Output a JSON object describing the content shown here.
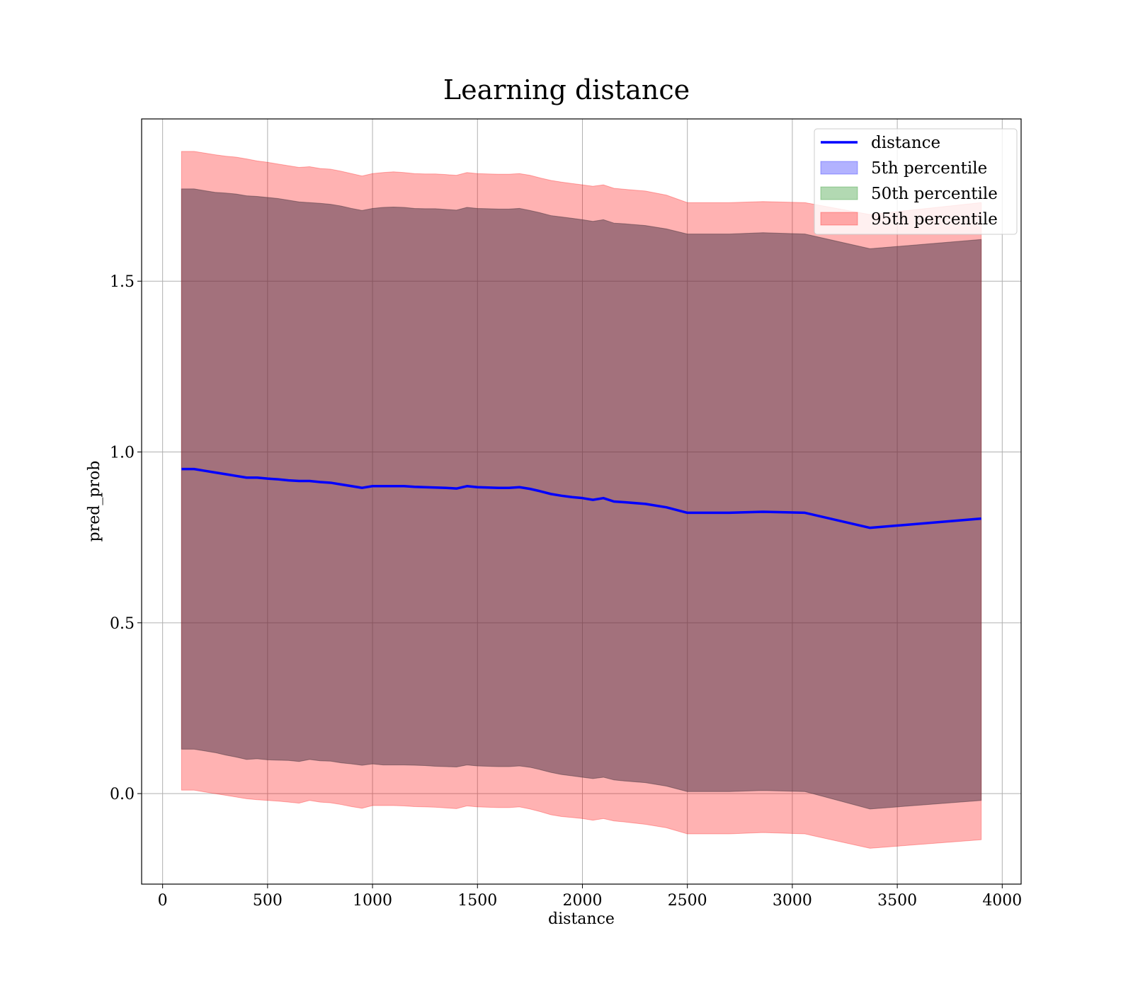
{
  "chart_data": {
    "type": "area",
    "title": "Learning distance",
    "xlabel": "distance",
    "ylabel": "pred_prob",
    "xlim": [
      -100,
      4090
    ],
    "ylim": [
      -0.265,
      1.975
    ],
    "xticks": [
      0,
      500,
      1000,
      1500,
      2000,
      2500,
      3000,
      3500,
      4000
    ],
    "xtick_labels": [
      "0",
      "500",
      "1000",
      "1500",
      "2000",
      "2500",
      "3000",
      "3500",
      "4000"
    ],
    "yticks": [
      0.0,
      0.5,
      1.0,
      1.5
    ],
    "ytick_labels": [
      "0.0",
      "0.5",
      "1.0",
      "1.5"
    ],
    "grid": true,
    "legend_position": "top-right",
    "legend": [
      {
        "label": "distance",
        "kind": "line",
        "color": "#0000ff"
      },
      {
        "label": "5th percentile",
        "kind": "patch",
        "color": "#0000ff"
      },
      {
        "label": "50th percentile",
        "kind": "patch",
        "color": "#008000"
      },
      {
        "label": "95th percentile",
        "kind": "patch",
        "color": "#ff0000"
      }
    ],
    "x": [
      90,
      150,
      200,
      250,
      300,
      350,
      400,
      450,
      500,
      550,
      600,
      650,
      700,
      750,
      800,
      850,
      900,
      950,
      1000,
      1050,
      1100,
      1150,
      1200,
      1250,
      1300,
      1350,
      1400,
      1450,
      1500,
      1550,
      1600,
      1650,
      1700,
      1750,
      1800,
      1850,
      1900,
      1950,
      2000,
      2050,
      2100,
      2150,
      2200,
      2300,
      2400,
      2500,
      2600,
      2700,
      2860,
      3060,
      3370,
      3900
    ],
    "series": [
      {
        "name": "distance",
        "values": [
          0.95,
          0.95,
          0.945,
          0.94,
          0.935,
          0.93,
          0.925,
          0.925,
          0.922,
          0.92,
          0.917,
          0.915,
          0.915,
          0.912,
          0.91,
          0.905,
          0.9,
          0.895,
          0.9,
          0.9,
          0.9,
          0.9,
          0.898,
          0.897,
          0.896,
          0.895,
          0.893,
          0.9,
          0.897,
          0.896,
          0.895,
          0.895,
          0.897,
          0.892,
          0.885,
          0.877,
          0.872,
          0.868,
          0.865,
          0.86,
          0.865,
          0.855,
          0.853,
          0.848,
          0.838,
          0.822,
          0.822,
          0.822,
          0.825,
          0.822,
          0.778,
          0.805
        ]
      }
    ],
    "bands": [
      {
        "name": "5th percentile",
        "color": "#0000ff",
        "upper": [
          1.77,
          1.77,
          1.765,
          1.76,
          1.758,
          1.755,
          1.75,
          1.748,
          1.745,
          1.742,
          1.737,
          1.732,
          1.73,
          1.728,
          1.725,
          1.72,
          1.713,
          1.707,
          1.713,
          1.716,
          1.717,
          1.716,
          1.713,
          1.712,
          1.712,
          1.71,
          1.708,
          1.716,
          1.713,
          1.712,
          1.711,
          1.711,
          1.713,
          1.707,
          1.7,
          1.692,
          1.688,
          1.684,
          1.68,
          1.675,
          1.68,
          1.67,
          1.668,
          1.663,
          1.653,
          1.638,
          1.638,
          1.638,
          1.642,
          1.638,
          1.595,
          1.622
        ],
        "lower": [
          0.13,
          0.13,
          0.125,
          0.12,
          0.113,
          0.107,
          0.1,
          0.102,
          0.099,
          0.098,
          0.097,
          0.094,
          0.1,
          0.096,
          0.095,
          0.09,
          0.087,
          0.083,
          0.087,
          0.084,
          0.084,
          0.084,
          0.083,
          0.082,
          0.08,
          0.079,
          0.078,
          0.084,
          0.081,
          0.08,
          0.079,
          0.079,
          0.081,
          0.077,
          0.07,
          0.062,
          0.056,
          0.052,
          0.048,
          0.044,
          0.048,
          0.04,
          0.037,
          0.032,
          0.022,
          0.006,
          0.006,
          0.006,
          0.009,
          0.006,
          -0.045,
          -0.02
        ]
      },
      {
        "name": "50th percentile",
        "color": "#008000",
        "upper": [
          1.77,
          1.77,
          1.765,
          1.76,
          1.758,
          1.755,
          1.75,
          1.748,
          1.745,
          1.742,
          1.737,
          1.732,
          1.73,
          1.728,
          1.725,
          1.72,
          1.713,
          1.707,
          1.713,
          1.716,
          1.717,
          1.716,
          1.713,
          1.712,
          1.712,
          1.71,
          1.708,
          1.716,
          1.713,
          1.712,
          1.711,
          1.711,
          1.713,
          1.707,
          1.7,
          1.692,
          1.688,
          1.684,
          1.68,
          1.675,
          1.68,
          1.67,
          1.668,
          1.663,
          1.653,
          1.638,
          1.638,
          1.638,
          1.642,
          1.638,
          1.595,
          1.622
        ],
        "lower": [
          0.13,
          0.13,
          0.125,
          0.12,
          0.113,
          0.107,
          0.1,
          0.102,
          0.099,
          0.098,
          0.097,
          0.094,
          0.1,
          0.096,
          0.095,
          0.09,
          0.087,
          0.083,
          0.087,
          0.084,
          0.084,
          0.084,
          0.083,
          0.082,
          0.08,
          0.079,
          0.078,
          0.084,
          0.081,
          0.08,
          0.079,
          0.079,
          0.081,
          0.077,
          0.07,
          0.062,
          0.056,
          0.052,
          0.048,
          0.044,
          0.048,
          0.04,
          0.037,
          0.032,
          0.022,
          0.006,
          0.006,
          0.006,
          0.009,
          0.006,
          -0.045,
          -0.02
        ]
      },
      {
        "name": "95th percentile",
        "color": "#ff0000",
        "upper": [
          1.88,
          1.88,
          1.875,
          1.87,
          1.866,
          1.863,
          1.858,
          1.852,
          1.848,
          1.843,
          1.838,
          1.833,
          1.835,
          1.83,
          1.828,
          1.822,
          1.815,
          1.808,
          1.815,
          1.818,
          1.82,
          1.818,
          1.815,
          1.814,
          1.814,
          1.812,
          1.81,
          1.818,
          1.815,
          1.814,
          1.813,
          1.813,
          1.815,
          1.81,
          1.802,
          1.795,
          1.79,
          1.786,
          1.782,
          1.778,
          1.782,
          1.772,
          1.769,
          1.764,
          1.752,
          1.73,
          1.73,
          1.73,
          1.733,
          1.73,
          1.695,
          1.73
        ],
        "lower": [
          0.01,
          0.01,
          0.005,
          0.0,
          -0.005,
          -0.01,
          -0.015,
          -0.018,
          -0.02,
          -0.022,
          -0.025,
          -0.028,
          -0.02,
          -0.025,
          -0.027,
          -0.032,
          -0.038,
          -0.043,
          -0.035,
          -0.035,
          -0.035,
          -0.036,
          -0.038,
          -0.039,
          -0.04,
          -0.042,
          -0.044,
          -0.036,
          -0.039,
          -0.04,
          -0.041,
          -0.041,
          -0.039,
          -0.045,
          -0.053,
          -0.062,
          -0.067,
          -0.07,
          -0.073,
          -0.078,
          -0.073,
          -0.08,
          -0.083,
          -0.09,
          -0.1,
          -0.118,
          -0.118,
          -0.118,
          -0.114,
          -0.118,
          -0.16,
          -0.135
        ]
      }
    ]
  }
}
